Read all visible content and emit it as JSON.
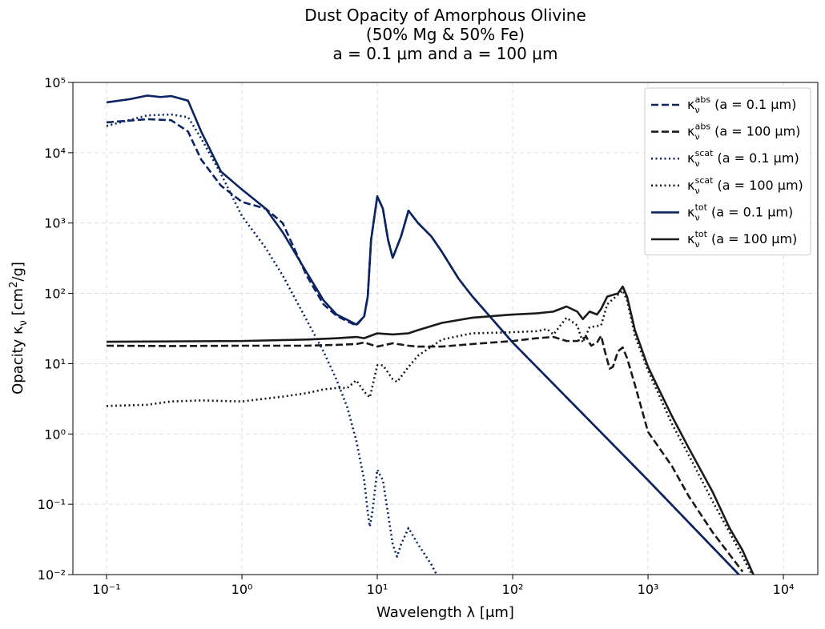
{
  "chart_data": {
    "type": "line",
    "title": [
      "Dust Opacity of Amorphous Olivine",
      "(50% Mg & 50% Fe)",
      "a = 0.1 μm and a = 100 μm"
    ],
    "x_label": "Wavelength λ [μm]",
    "y_label": "Opacity κν [cm2/g]",
    "xlog": true,
    "ylog": true,
    "grid": true,
    "legend": "upper right",
    "xlim": [
      0.0564,
      17950
    ],
    "ylim": [
      0.01,
      100000
    ],
    "xticks": [
      {
        "value": 0.1,
        "label": "10⁻¹"
      },
      {
        "value": 1,
        "label": "10⁰"
      },
      {
        "value": 10,
        "label": "10¹"
      },
      {
        "value": 100,
        "label": "10²"
      },
      {
        "value": 1000,
        "label": "10³"
      },
      {
        "value": 10000,
        "label": "10⁴"
      }
    ],
    "yticks": [
      {
        "value": 0.01,
        "label": "10⁻²"
      },
      {
        "value": 0.1,
        "label": "10⁻¹"
      },
      {
        "value": 1,
        "label": "10⁰"
      },
      {
        "value": 10,
        "label": "10¹"
      },
      {
        "value": 100,
        "label": "10²"
      },
      {
        "value": 1000,
        "label": "10³"
      },
      {
        "value": 10000,
        "label": "10⁴"
      },
      {
        "value": 100000,
        "label": "10⁵"
      }
    ],
    "series": [
      {
        "name": "κνabs (a = 0.1 μm)",
        "color": "#0c2461",
        "style": "dashed",
        "x": [
          0.1,
          0.2,
          0.3,
          0.4,
          0.5,
          0.7,
          1,
          1.5,
          2,
          3,
          4,
          5,
          6,
          7,
          8,
          8.5,
          9,
          10,
          11,
          12,
          13,
          15,
          17,
          20,
          25,
          30,
          40,
          50,
          100,
          1000,
          10000
        ],
        "values": [
          27000,
          30000,
          29000,
          20000,
          8000,
          3400,
          2000,
          1600,
          1000,
          180,
          70,
          48,
          40,
          35,
          47,
          90,
          580,
          2400,
          1600,
          580,
          320,
          650,
          1500,
          1000,
          650,
          390,
          160,
          92,
          20,
          0.22,
          0.0022
        ]
      },
      {
        "name": "κνabs (a = 100 μm)",
        "color": "#1a1a1a",
        "style": "dashed",
        "x": [
          0.1,
          0.3,
          1,
          3,
          5,
          7,
          8,
          10,
          13,
          17,
          20,
          30,
          50,
          100,
          150,
          200,
          250,
          300,
          350,
          380,
          420,
          450,
          480,
          520,
          550,
          600,
          650,
          700,
          800,
          1000,
          1500,
          2000,
          3000,
          5000
        ],
        "values": [
          18,
          17.8,
          18,
          18,
          18.5,
          19,
          20,
          17.5,
          19.5,
          18,
          17.5,
          17.5,
          19,
          21,
          23,
          24,
          21,
          21,
          24,
          18,
          20,
          25,
          15,
          8.5,
          9,
          15,
          17,
          12,
          5,
          1.07,
          0.35,
          0.13,
          0.04,
          0.011
        ]
      },
      {
        "name": "κνscat (a = 0.1 μm)",
        "color": "#0c2461",
        "style": "dotted",
        "x": [
          0.1,
          0.2,
          0.3,
          0.4,
          0.5,
          0.7,
          1,
          1.5,
          2,
          3,
          4,
          5,
          6,
          7,
          8,
          8.5,
          8.8,
          9.2,
          10,
          11,
          13,
          14,
          15,
          17,
          20,
          25,
          30,
          40
        ],
        "values": [
          24000,
          34000,
          35000,
          32000,
          16000,
          5000,
          1260,
          440,
          180,
          42,
          15,
          5.9,
          2.4,
          0.8,
          0.22,
          0.078,
          0.048,
          0.078,
          0.31,
          0.22,
          0.027,
          0.018,
          0.027,
          0.046,
          0.027,
          0.014,
          0.0073,
          0.003
        ]
      },
      {
        "name": "κνscat (a = 100 μm)",
        "color": "#1a1a1a",
        "style": "dotted",
        "x": [
          0.1,
          0.2,
          0.3,
          0.5,
          1,
          2,
          3,
          4,
          5,
          6,
          7,
          8,
          8.8,
          10,
          11,
          13,
          14,
          17,
          20,
          30,
          50,
          100,
          150,
          180,
          200,
          250,
          300,
          330,
          370,
          450,
          500,
          650,
          700,
          800,
          1000,
          1500,
          2000,
          3000,
          4000,
          5000,
          6000
        ],
        "values": [
          2.5,
          2.6,
          2.9,
          3.0,
          2.9,
          3.4,
          3.8,
          4.3,
          4.5,
          4.5,
          5.8,
          4.0,
          3.3,
          9.5,
          9.5,
          6,
          5.5,
          9,
          13,
          22,
          27,
          28,
          29,
          31,
          26,
          45,
          35,
          20,
          33,
          35,
          70,
          110,
          80,
          25,
          8,
          1.4,
          0.5,
          0.11,
          0.04,
          0.018,
          0.009
        ]
      },
      {
        "name": "κνtot (a = 0.1 μm)",
        "color": "#0c2461",
        "style": "solid",
        "x": [
          0.1,
          0.15,
          0.2,
          0.25,
          0.3,
          0.4,
          0.5,
          0.7,
          1,
          1.5,
          2,
          3,
          4,
          5,
          6,
          7,
          8,
          8.5,
          9,
          10,
          11,
          12,
          13,
          15,
          17,
          20,
          25,
          30,
          40,
          50,
          100,
          1000,
          10000
        ],
        "values": [
          52000,
          58000,
          65000,
          62000,
          64000,
          55000,
          20000,
          5400,
          3000,
          1600,
          740,
          200,
          80,
          50,
          42,
          36,
          47,
          90,
          580,
          2400,
          1600,
          580,
          320,
          650,
          1500,
          1000,
          650,
          390,
          160,
          92,
          20,
          0.22,
          0.0022
        ]
      },
      {
        "name": "κνtot (a = 100 μm)",
        "color": "#1a1a1a",
        "style": "solid",
        "x": [
          0.1,
          1,
          3,
          5,
          7,
          8,
          10,
          13,
          17,
          20,
          30,
          50,
          100,
          150,
          200,
          250,
          300,
          330,
          370,
          420,
          450,
          500,
          600,
          650,
          700,
          800,
          1000,
          1500,
          2000,
          3000,
          4000,
          5000,
          6000
        ],
        "values": [
          20.5,
          21,
          22,
          23,
          24,
          23,
          27,
          26,
          27,
          30,
          38,
          45,
          50,
          52,
          55,
          65,
          55,
          43,
          55,
          50,
          60,
          90,
          100,
          125,
          90,
          30,
          9,
          1.8,
          0.63,
          0.15,
          0.046,
          0.022,
          0.01
        ]
      }
    ]
  }
}
